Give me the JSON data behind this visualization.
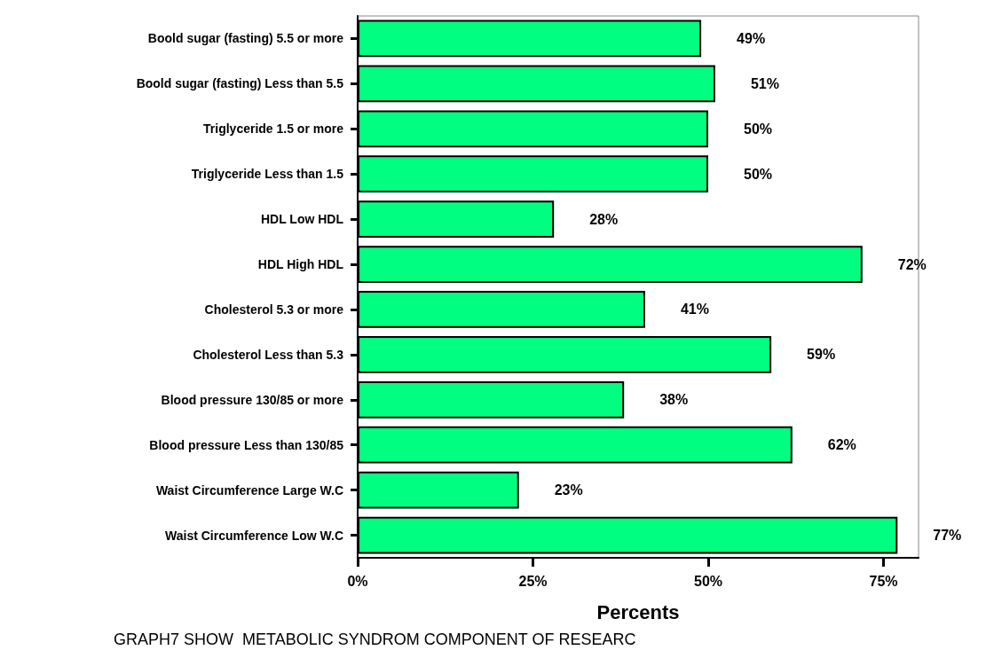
{
  "chart_data": {
    "type": "bar",
    "orientation": "horizontal",
    "xlabel": "Percents",
    "categories": [
      "Boold sugar (fasting) 5.5 or more",
      "Boold sugar (fasting) Less than 5.5",
      "Triglyceride 1.5 or more",
      "Triglyceride Less than 1.5",
      "HDL Low HDL",
      "HDL High HDL",
      "Cholesterol 5.3 or more",
      "Cholesterol Less than 5.3",
      "Blood pressure 130/85 or more",
      "Blood pressure Less than 130/85",
      "Waist Circumference Large W.C",
      "Waist Circumference Low W.C"
    ],
    "values": [
      49,
      51,
      50,
      50,
      28,
      72,
      41,
      59,
      38,
      62,
      23,
      77
    ],
    "value_labels": [
      "49%",
      "51%",
      "50%",
      "50%",
      "28%",
      "72%",
      "41%",
      "59%",
      "38%",
      "62%",
      "23%",
      "77%"
    ],
    "color": "#00ff80",
    "xlim": [
      0,
      80
    ],
    "xticks": [
      {
        "value": 0,
        "label": "0%"
      },
      {
        "value": 25,
        "label": "25%"
      },
      {
        "value": 50,
        "label": "50%"
      },
      {
        "value": 75,
        "label": "75%"
      }
    ],
    "grid": false,
    "annotations": [
      "GRAPH7 SHOW  METABOLIC SYNDROM COMPONENT OF RESEARC"
    ]
  }
}
